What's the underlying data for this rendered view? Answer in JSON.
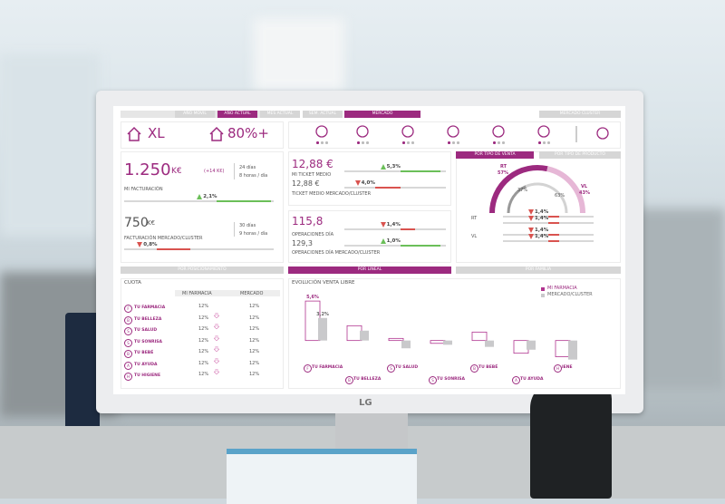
{
  "tabs": {
    "periods": [
      "AÑO MOVIL",
      "AÑO ACTUAL",
      "MES ACTUAL",
      "SEM. ACTUAL"
    ],
    "active": 1,
    "mercado": "MERCADO",
    "cluster": "MERCADO CLUSTER"
  },
  "size": {
    "label": "XL",
    "share": "80%+"
  },
  "facturacion": {
    "value": "1.250",
    "unit": "K€",
    "delta": "(+14 K€)",
    "days": "24 días",
    "hours": "8 horas / día",
    "label": "MI FACTURACIÓN",
    "pct": "2,1%"
  },
  "mercado": {
    "value": "750",
    "unit": "K€",
    "days": "30 días",
    "hours": "9 horas / día",
    "label": "FACTURACIÓN MERCADO/CLUSTER",
    "pct": "0,8%"
  },
  "ticket": {
    "value": "12,88 €",
    "label": "MI TICKET MEDIO",
    "pct": "5,3%",
    "cluster_value": "12,88 €",
    "cluster_label": "TICKET MEDIO MERCADO/CLUSTER",
    "cluster_pct": "4,0%"
  },
  "operaciones": {
    "value": "115,8",
    "label": "OPERACIONES DÍA",
    "pct": "1,4%",
    "cluster_value": "129,3",
    "cluster_label": "OPERACIONES DÍA MERCADO/CLUSTER",
    "cluster_pct": "1,0%"
  },
  "venta": {
    "tabs": [
      "POR TIPO DE VENTA",
      "POR TIPO DE PRODUCTO"
    ],
    "gauge": {
      "outer": [
        {
          "name": "RT",
          "value": 57,
          "label": "57%"
        },
        {
          "name": "VL",
          "value": 43,
          "label": "43%"
        }
      ],
      "inner": [
        {
          "value": 37,
          "label": "37%"
        },
        {
          "value": 63,
          "label": "63%"
        }
      ]
    },
    "rows": [
      {
        "label": "RT",
        "values": [
          "1,4%",
          "1,4%"
        ]
      },
      {
        "label": "VL",
        "values": [
          "1,4%",
          "1,4%"
        ]
      }
    ]
  },
  "sections": [
    "POR POSICIONAMIENTO",
    "POR LINEAL",
    "POR FAMILIA"
  ],
  "cuota": {
    "title": "CUOTA",
    "columns": [
      "MI FARMACIA",
      "MERCADO"
    ],
    "rows": [
      {
        "icon": "F",
        "label": "TU FARMACIA",
        "mine": "12%",
        "market": "12%"
      },
      {
        "icon": "B",
        "label": "TU BELLEZA",
        "mine": "12%",
        "market": "12%"
      },
      {
        "icon": "S",
        "label": "TU SALUD",
        "mine": "12%",
        "market": "12%"
      },
      {
        "icon": "S",
        "label": "TU SONRISA",
        "mine": "12%",
        "market": "12%"
      },
      {
        "icon": "B",
        "label": "TU BEBÉ",
        "mine": "12%",
        "market": "12%"
      },
      {
        "icon": "A",
        "label": "TU AYUDA",
        "mine": "12%",
        "market": "12%"
      },
      {
        "icon": "H",
        "label": "TU HIGIENE",
        "mine": "12%",
        "market": "12%"
      }
    ]
  },
  "chart": {
    "type": "bar",
    "title": "EVOLUCIÓN VENTA LIBRE",
    "categories": [
      "TU FARMACIA",
      "TU BELLEZA",
      "TU SALUD",
      "TU SONRISA",
      "TU BEBÉ",
      "TU AYUDA",
      "IENE"
    ],
    "icons": [
      "F",
      "B",
      "S",
      "S",
      "B",
      "A",
      "H"
    ],
    "series": [
      {
        "name": "MI FARMACIA",
        "color": "#b0348f",
        "values": [
          5.6,
          2.1,
          0.3,
          -0.4,
          1.2,
          -1.8,
          -2.3
        ],
        "value_labels": [
          "5,6%",
          null,
          null,
          null,
          null,
          null,
          null
        ]
      },
      {
        "name": "MERCADO/CLUSTER",
        "color": "#c9c9cb",
        "values": [
          3.2,
          1.4,
          -1.1,
          -0.6,
          -0.9,
          -1.3,
          -2.7
        ],
        "value_labels": [
          "3,2%",
          null,
          null,
          null,
          null,
          null,
          null
        ]
      }
    ],
    "ylim": [
      -3,
      6
    ]
  },
  "monitor": {
    "brand": "LG"
  }
}
